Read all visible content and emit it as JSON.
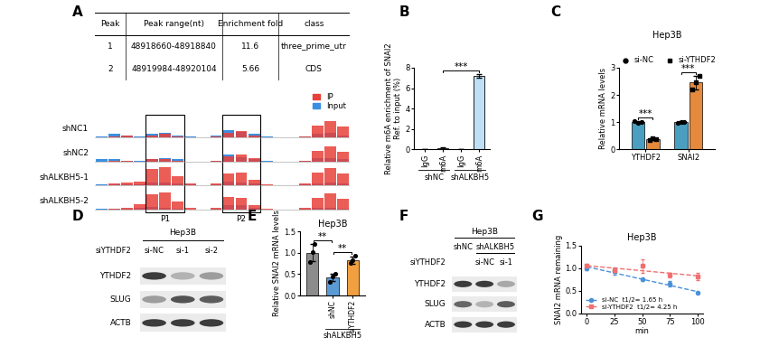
{
  "panel_A": {
    "panel": "A",
    "table": {
      "header": [
        "Peak",
        "Peak range(nt)",
        "Enrichment fold",
        "class"
      ],
      "rows": [
        [
          1,
          "48918660-48918840",
          11.6,
          "three_prime_utr"
        ],
        [
          2,
          "48919984-48920104",
          5.66,
          "CDS"
        ]
      ]
    },
    "tracks": {
      "legend": "upper right",
      "series": [
        {
          "name": "IP",
          "color": "#e8403a"
        },
        {
          "name": "Input",
          "color": "#3c8fe0"
        }
      ],
      "peaks": [
        "P1",
        "P2"
      ],
      "samples": [
        {
          "name": "shNC1",
          "ip": [
            0,
            0.05,
            0.1,
            0,
            0.1,
            0.15,
            0.05,
            0,
            0,
            0.05,
            0.2,
            0.3,
            0.1,
            0,
            0,
            0,
            0.05,
            0.55,
            0.75,
            0.5
          ],
          "input": [
            0.05,
            0.15,
            0.1,
            0.05,
            0.15,
            0.2,
            0.1,
            0.05,
            0,
            0.1,
            0.35,
            0.25,
            0.15,
            0.05,
            0,
            0,
            0.05,
            0.15,
            0.2,
            0.1
          ]
        },
        {
          "name": "shNC2",
          "ip": [
            0,
            0.05,
            0.05,
            0,
            0.1,
            0.1,
            0.05,
            0,
            0,
            0.05,
            0.25,
            0.3,
            0.15,
            0,
            0,
            0,
            0.05,
            0.5,
            0.7,
            0.45
          ],
          "input": [
            0.1,
            0.1,
            0.05,
            0.05,
            0.1,
            0.15,
            0.1,
            0,
            0,
            0.05,
            0.3,
            0.2,
            0.1,
            0.05,
            0,
            0,
            0.05,
            0.15,
            0.15,
            0.1
          ]
        },
        {
          "name": "shALKBH5-1",
          "ip": [
            0,
            0.1,
            0.15,
            0.2,
            0.75,
            0.85,
            0.45,
            0.1,
            0,
            0.1,
            0.55,
            0.6,
            0.25,
            0.05,
            0,
            0,
            0.1,
            0.6,
            0.8,
            0.55
          ],
          "input": [
            0.05,
            0.05,
            0.05,
            0.05,
            0.15,
            0.15,
            0.1,
            0.05,
            0,
            0.05,
            0.2,
            0.15,
            0.1,
            0,
            0,
            0,
            0.05,
            0.1,
            0.15,
            0.1
          ]
        },
        {
          "name": "shALKBH5-2",
          "ip": [
            0,
            0.05,
            0.1,
            0.25,
            0.7,
            0.8,
            0.4,
            0.1,
            0,
            0.1,
            0.6,
            0.55,
            0.2,
            0.05,
            0,
            0,
            0.1,
            0.55,
            0.75,
            0.5
          ],
          "input": [
            0.05,
            0.05,
            0.05,
            0.1,
            0.15,
            0.1,
            0.05,
            0,
            0,
            0.05,
            0.2,
            0.2,
            0.1,
            0,
            0,
            0,
            0.05,
            0.1,
            0.1,
            0.05
          ]
        }
      ]
    }
  },
  "chart_data": [
    {
      "panel": "B",
      "type": "bar",
      "y_label": "Relative m6A enrichment of SNAI2\nRef. to input (%)",
      "categories": [
        "IgG",
        "m6A",
        "IgG",
        "m6A"
      ],
      "groups": [
        "shNC",
        "shNC",
        "shALKBH5",
        "shALKBH5"
      ],
      "values": [
        0.02,
        0.15,
        0.03,
        7.2
      ],
      "errors": [
        0.01,
        0.1,
        0.01,
        0.15
      ],
      "colors": [
        "#d9d9d9",
        "#d9d9d9",
        "#d9d9d9",
        "#bfdff5"
      ],
      "ylim": [
        0,
        8
      ],
      "yticks": [
        0,
        2,
        4,
        6,
        8
      ],
      "significance": [
        {
          "from": 1,
          "to": 3,
          "label": "***"
        }
      ]
    },
    {
      "panel": "C",
      "type": "bar",
      "title": "Hep3B",
      "y_label": "Relative mRNA levels",
      "categories": [
        "YTHDF2",
        "SNAI2"
      ],
      "legend": "upper center",
      "series": [
        {
          "name": "si-NC",
          "color": "#4a9fc0",
          "marker": "o",
          "values": [
            1.0,
            1.0
          ],
          "errors": [
            0.04,
            0.03
          ],
          "points": [
            [
              1.03,
              0.97,
              1.0
            ],
            [
              0.98,
              1.0,
              1.02
            ]
          ]
        },
        {
          "name": "si-YTHDF2",
          "color": "#e58a3c",
          "marker": "s",
          "values": [
            0.38,
            2.45
          ],
          "errors": [
            0.04,
            0.25
          ],
          "points": [
            [
              0.35,
              0.4,
              0.38
            ],
            [
              2.2,
              2.45,
              2.7
            ]
          ]
        }
      ],
      "ylim": [
        0,
        3
      ],
      "yticks": [
        0,
        1,
        2,
        3
      ],
      "significance": [
        {
          "category": 0,
          "label": "***"
        },
        {
          "category": 1,
          "label": "***"
        }
      ]
    },
    {
      "panel": "E",
      "type": "bar",
      "title": "Hep3B",
      "y_label": "Relative SNAI2 mRNA levels",
      "categories": [
        null,
        "shNC",
        "siYTHDF2"
      ],
      "groups": [
        null,
        "shALKBH5",
        "shALKBH5"
      ],
      "values": [
        1.0,
        0.42,
        0.83
      ],
      "errors": [
        0.2,
        0.09,
        0.08
      ],
      "points": [
        [
          0.78,
          1.02,
          1.2
        ],
        [
          0.32,
          0.45,
          0.5
        ],
        [
          0.76,
          0.82,
          0.93
        ]
      ],
      "colors": [
        "#8c8c8c",
        "#5b9bd5",
        "#f0a040"
      ],
      "ylim": [
        0,
        1.5
      ],
      "yticks": [
        {
          "value": 0,
          "label": "0.0"
        },
        0.5,
        {
          "value": 1,
          "label": "1.0"
        },
        1.5
      ],
      "significance": [
        {
          "from": 0,
          "to": 1,
          "label": "**"
        },
        {
          "from": 1,
          "to": 2,
          "label": "**"
        }
      ]
    },
    {
      "panel": "G",
      "type": "line",
      "title": "Hep3B",
      "x_label": "min",
      "y_label": "SNAI2 mRNA remaining",
      "x": [
        0,
        25,
        50,
        75,
        100
      ],
      "legend": "lower left",
      "series": [
        {
          "name": "si-NC",
          "annotation": "t1/2= 1.65 h",
          "color": "#4a90d9",
          "marker": "o",
          "line_style": "dashed",
          "values": [
            1.0,
            0.93,
            0.75,
            0.65,
            0.45
          ],
          "errors": [
            0.05,
            0.08,
            0.03,
            0.06,
            0.02
          ]
        },
        {
          "name": "si-YTHDF2",
          "annotation": "t1/2= 4.25 h",
          "color": "#f07070",
          "marker": "s",
          "line_style": "dashed",
          "values": [
            1.05,
            0.95,
            1.05,
            0.85,
            0.82
          ],
          "errors": [
            0.05,
            0.05,
            0.15,
            0.05,
            0.08
          ]
        }
      ],
      "xlim": [
        -5,
        105
      ],
      "xticks": [
        0,
        25,
        50,
        75,
        100
      ],
      "ylim": [
        0,
        1.5
      ],
      "yticks": [
        {
          "value": 0,
          "label": "0.0"
        },
        0.5,
        {
          "value": 1,
          "label": "1.0"
        },
        1.5
      ]
    }
  ],
  "blots": [
    {
      "panel": "D",
      "title": "Hep3B",
      "header_rows": [
        {
          "label": "siYTHDF2",
          "lanes": [
            "si-NC",
            "si-1",
            "si-2"
          ]
        }
      ],
      "rows": [
        {
          "name": "YTHDF2",
          "intensity": [
            0.9,
            0.35,
            0.45
          ]
        },
        {
          "name": "SLUG",
          "intensity": [
            0.45,
            0.8,
            0.75
          ]
        },
        {
          "name": "ACTB",
          "intensity": [
            0.9,
            0.9,
            0.9
          ]
        }
      ]
    },
    {
      "panel": "F",
      "title": "Hep3B",
      "header_rows": [
        {
          "lanes": [
            "shNC",
            "shALKBH5",
            "shALKBH5"
          ]
        },
        {
          "label": "siYTHDF2",
          "lanes": [
            null,
            "si-NC",
            "si-1"
          ]
        }
      ],
      "rows": [
        {
          "name": "YTHDF2",
          "intensity": [
            0.9,
            0.9,
            0.4
          ]
        },
        {
          "name": "SLUG",
          "intensity": [
            0.7,
            0.35,
            0.75
          ]
        },
        {
          "name": "ACTB",
          "intensity": [
            0.9,
            0.9,
            0.9
          ]
        }
      ]
    }
  ]
}
